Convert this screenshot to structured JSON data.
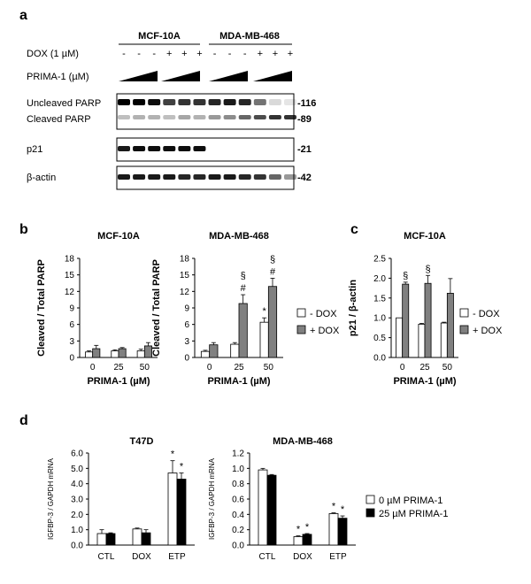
{
  "panel_labels": {
    "a": "a",
    "b": "b",
    "c": "c",
    "d": "d"
  },
  "panel_a": {
    "cell_lines": [
      "MCF-10A",
      "MDA-MB-468"
    ],
    "dox_label": "DOX (1 µM)",
    "dox_signs": [
      "-",
      "-",
      "-",
      "+",
      "+",
      "+",
      "-",
      "-",
      "-",
      "+",
      "+",
      "+"
    ],
    "prima_label": "PRIMA-1 (µM)",
    "blots": [
      {
        "label": "Uncleaved PARP",
        "kda": "-116"
      },
      {
        "label": "Cleaved PARP",
        "kda": "-89"
      },
      {
        "label": "p21",
        "kda": "-21"
      },
      {
        "label": "β-actin",
        "kda": "-42"
      }
    ]
  },
  "legend_dox": {
    "minus": "- DOX",
    "plus": "+ DOX"
  },
  "legend_prima": {
    "zero": "0 µM PRIMA-1",
    "twentyfive": "25 µM PRIMA-1"
  },
  "colors": {
    "white_bar": "#ffffff",
    "gray_bar": "#808080",
    "black_bar": "#000000"
  },
  "chart_data": [
    {
      "panel": "b-left",
      "type": "bar",
      "title": "MCF-10A",
      "xlabel": "PRIMA-1 (µM)",
      "ylabel": "Cleaved / Total PARP",
      "categories": [
        "0",
        "25",
        "50"
      ],
      "ylim": [
        0,
        18
      ],
      "yticks": [
        0,
        3,
        6,
        9,
        12,
        15,
        18
      ],
      "series": [
        {
          "name": "- DOX",
          "values": [
            1.0,
            1.2,
            1.2
          ],
          "errors": [
            0.2,
            0.2,
            0.3
          ]
        },
        {
          "name": "+ DOX",
          "values": [
            1.6,
            1.6,
            2.1
          ],
          "errors": [
            0.6,
            0.2,
            0.6
          ]
        }
      ],
      "annotations": []
    },
    {
      "panel": "b-right",
      "type": "bar",
      "title": "MDA-MB-468",
      "xlabel": "PRIMA-1 (µM)",
      "ylabel": "Cleaved / Total PARP",
      "categories": [
        "0",
        "25",
        "50"
      ],
      "ylim": [
        0,
        18
      ],
      "yticks": [
        0,
        3,
        6,
        9,
        12,
        15,
        18
      ],
      "series": [
        {
          "name": "- DOX",
          "values": [
            1.1,
            2.4,
            6.4
          ],
          "errors": [
            0.2,
            0.3,
            0.8
          ]
        },
        {
          "name": "+ DOX",
          "values": [
            2.3,
            9.8,
            12.9
          ],
          "errors": [
            0.4,
            1.6,
            1.5
          ]
        }
      ],
      "annotations": [
        {
          "category": 1,
          "series": 1,
          "marks": [
            "§",
            "#"
          ]
        },
        {
          "category": 2,
          "series": 0,
          "marks": [
            "*"
          ]
        },
        {
          "category": 2,
          "series": 1,
          "marks": [
            "§",
            "#"
          ]
        }
      ]
    },
    {
      "panel": "c",
      "type": "bar",
      "title": "MCF-10A",
      "xlabel": "PRIMA-1 (µM)",
      "ylabel": "p21 / β-actin",
      "categories": [
        "0",
        "25",
        "50"
      ],
      "ylim": [
        0,
        2.5
      ],
      "yticks": [
        "0.0",
        "0.5",
        "1.0",
        "1.5",
        "2.0",
        "2.5"
      ],
      "series": [
        {
          "name": "- DOX",
          "values": [
            1.0,
            0.84,
            0.87
          ],
          "errors": [
            0.0,
            0.02,
            0.02
          ]
        },
        {
          "name": "+ DOX",
          "values": [
            1.85,
            1.87,
            1.62
          ],
          "errors": [
            0.05,
            0.2,
            0.37
          ]
        }
      ],
      "annotations": [
        {
          "category": 0,
          "series": 1,
          "marks": [
            "§"
          ]
        },
        {
          "category": 1,
          "series": 1,
          "marks": [
            "§"
          ]
        }
      ]
    },
    {
      "panel": "d-left",
      "type": "bar",
      "title": "T47D",
      "xlabel": "",
      "ylabel": "IGFBP-3 / GAPDH mRNA",
      "categories": [
        "CTL",
        "DOX",
        "ETP"
      ],
      "ylim": [
        0,
        6
      ],
      "yticks": [
        "0.0",
        "1.0",
        "2.0",
        "3.0",
        "4.0",
        "5.0",
        "6.0"
      ],
      "series": [
        {
          "name": "0 µM PRIMA-1",
          "values": [
            0.75,
            1.05,
            4.7
          ],
          "errors": [
            0.25,
            0.06,
            0.8
          ]
        },
        {
          "name": "25 µM PRIMA-1",
          "values": [
            0.75,
            0.8,
            4.3
          ],
          "errors": [
            0.05,
            0.2,
            0.4
          ]
        }
      ],
      "annotations": [
        {
          "category": 2,
          "series": 0,
          "marks": [
            "*"
          ]
        },
        {
          "category": 2,
          "series": 1,
          "marks": [
            "*"
          ]
        }
      ]
    },
    {
      "panel": "d-right",
      "type": "bar",
      "title": "MDA-MB-468",
      "xlabel": "",
      "ylabel": "IGFBP-3 / GAPDH mRNA",
      "categories": [
        "CTL",
        "DOX",
        "ETP"
      ],
      "ylim": [
        0,
        1.2
      ],
      "yticks": [
        "0.0",
        "0.2",
        "0.4",
        "0.6",
        "0.8",
        "1.0",
        "1.2"
      ],
      "series": [
        {
          "name": "0 µM PRIMA-1",
          "values": [
            0.98,
            0.11,
            0.41
          ],
          "errors": [
            0.02,
            0.01,
            0.01
          ]
        },
        {
          "name": "25 µM PRIMA-1",
          "values": [
            0.91,
            0.14,
            0.35
          ],
          "errors": [
            0.01,
            0.01,
            0.03
          ]
        }
      ],
      "annotations": [
        {
          "category": 1,
          "series": 0,
          "marks": [
            "*"
          ]
        },
        {
          "category": 1,
          "series": 1,
          "marks": [
            "*"
          ]
        },
        {
          "category": 2,
          "series": 0,
          "marks": [
            "*"
          ]
        },
        {
          "category": 2,
          "series": 1,
          "marks": [
            "*"
          ]
        }
      ]
    }
  ]
}
